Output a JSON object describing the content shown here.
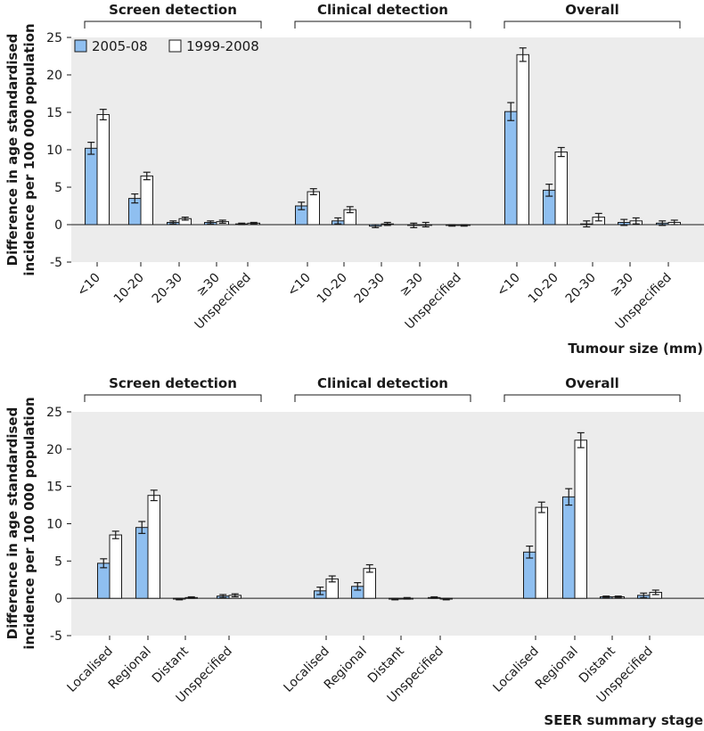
{
  "chart_data": [
    {
      "type": "bar",
      "ylabel_line1": "Difference in age standardised",
      "ylabel_line2": "incidence per 100 000 population",
      "xlabel": "Tumour size (mm)",
      "ylim": [
        -5,
        25
      ],
      "yticks": [
        -5,
        0,
        5,
        10,
        15,
        20,
        25
      ],
      "legend": [
        "2005-08",
        "1999-2008"
      ],
      "colors": {
        "2005-08": "#8fbff0",
        "1999-2008": "#ffffff",
        "stroke": "#1a1a1a"
      },
      "groups": [
        {
          "label": "Screen detection",
          "categories": [
            "<10",
            "10-20",
            "20-30",
            "≥30",
            "Unspecified"
          ],
          "series": [
            {
              "name": "2005-08",
              "values": [
                10.2,
                3.5,
                0.3,
                0.3,
                0.1
              ],
              "err": [
                0.8,
                0.6,
                0.2,
                0.2,
                0.1
              ]
            },
            {
              "name": "1999-2008",
              "values": [
                14.7,
                6.5,
                0.8,
                0.4,
                0.2
              ],
              "err": [
                0.7,
                0.5,
                0.2,
                0.2,
                0.1
              ]
            }
          ]
        },
        {
          "label": "Clinical detection",
          "categories": [
            "<10",
            "10-20",
            "20-30",
            "≥30",
            "Unspecified"
          ],
          "series": [
            {
              "name": "2005-08",
              "values": [
                2.5,
                0.5,
                -0.2,
                -0.1,
                -0.1
              ],
              "err": [
                0.5,
                0.4,
                0.2,
                0.3,
                0.1
              ]
            },
            {
              "name": "1999-2008",
              "values": [
                4.4,
                2.0,
                0.1,
                0.0,
                -0.1
              ],
              "err": [
                0.4,
                0.4,
                0.2,
                0.3,
                0.1
              ]
            }
          ]
        },
        {
          "label": "Overall",
          "categories": [
            "<10",
            "10-20",
            "20-30",
            "≥30",
            "Unspecified"
          ],
          "series": [
            {
              "name": "2005-08",
              "values": [
                15.1,
                4.6,
                0.1,
                0.3,
                0.2
              ],
              "err": [
                1.2,
                0.8,
                0.4,
                0.4,
                0.3
              ]
            },
            {
              "name": "1999-2008",
              "values": [
                22.7,
                9.7,
                1.0,
                0.5,
                0.3
              ],
              "err": [
                0.9,
                0.6,
                0.5,
                0.4,
                0.3
              ]
            }
          ]
        }
      ]
    },
    {
      "type": "bar",
      "ylabel_line1": "Difference in age standardised",
      "ylabel_line2": "incidence per 100 000 population",
      "xlabel": "SEER summary stage",
      "ylim": [
        -5,
        25
      ],
      "yticks": [
        -5,
        0,
        5,
        10,
        15,
        20,
        25
      ],
      "legend": [],
      "colors": {
        "2005-08": "#8fbff0",
        "1999-2008": "#ffffff",
        "stroke": "#1a1a1a"
      },
      "groups": [
        {
          "label": "Screen detection",
          "categories": [
            "Localised",
            "Regional",
            "Distant",
            "Unspecified"
          ],
          "series": [
            {
              "name": "2005-08",
              "values": [
                4.7,
                9.5,
                -0.1,
                0.3
              ],
              "err": [
                0.6,
                0.8,
                0.1,
                0.2
              ]
            },
            {
              "name": "1999-2008",
              "values": [
                8.5,
                13.8,
                0.1,
                0.4
              ],
              "err": [
                0.5,
                0.7,
                0.1,
                0.2
              ]
            }
          ]
        },
        {
          "label": "Clinical detection",
          "categories": [
            "Localised",
            "Regional",
            "Distant",
            "Unspecified"
          ],
          "series": [
            {
              "name": "2005-08",
              "values": [
                1.0,
                1.6,
                -0.1,
                0.1
              ],
              "err": [
                0.5,
                0.5,
                0.1,
                0.1
              ]
            },
            {
              "name": "1999-2008",
              "values": [
                2.6,
                4.0,
                0.0,
                -0.1
              ],
              "err": [
                0.4,
                0.5,
                0.1,
                0.1
              ]
            }
          ]
        },
        {
          "label": "Overall",
          "categories": [
            "Localised",
            "Regional",
            "Distant",
            "Unspecified"
          ],
          "series": [
            {
              "name": "2005-08",
              "values": [
                6.2,
                13.6,
                0.2,
                0.4
              ],
              "err": [
                0.8,
                1.1,
                0.1,
                0.3
              ]
            },
            {
              "name": "1999-2008",
              "values": [
                12.2,
                21.2,
                0.2,
                0.8
              ],
              "err": [
                0.7,
                1.0,
                0.1,
                0.3
              ]
            }
          ]
        }
      ]
    }
  ]
}
